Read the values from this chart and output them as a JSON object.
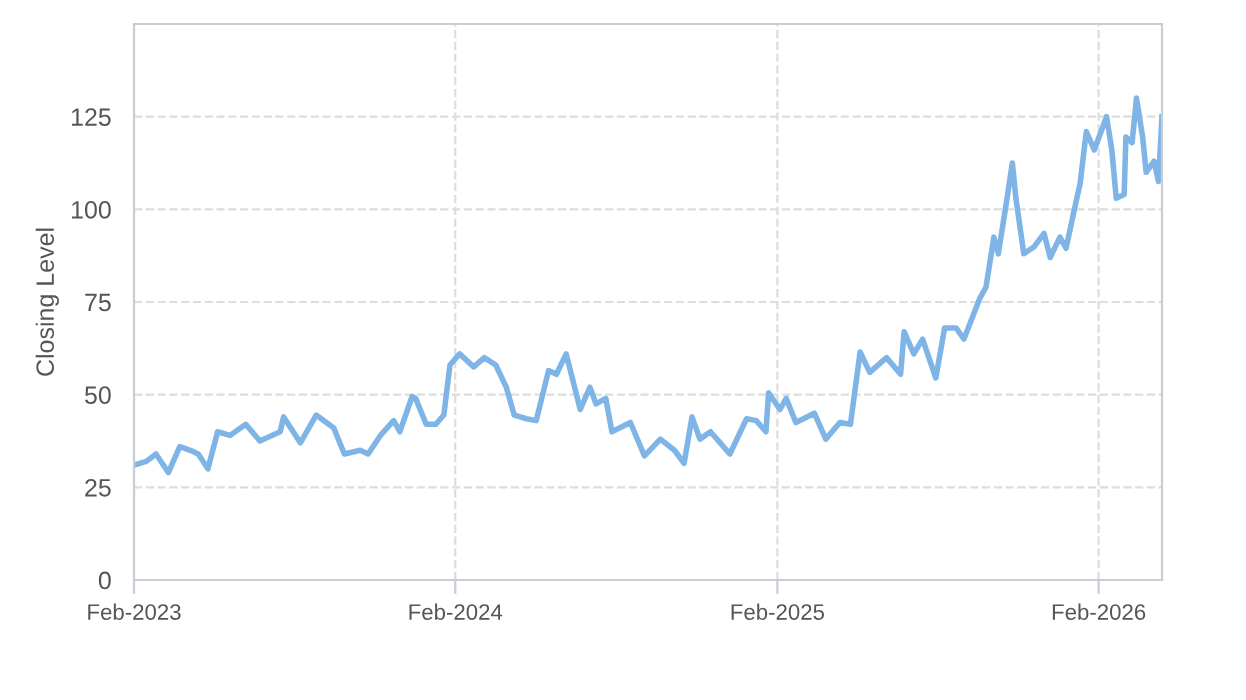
{
  "chart_data": {
    "type": "line",
    "ylabel": "Closing Level",
    "x": [
      "2023-02-01",
      "2023-02-15",
      "2023-02-26",
      "2023-03-12",
      "2023-03-25",
      "2023-04-06",
      "2023-04-15",
      "2023-04-26",
      "2023-05-07",
      "2023-05-21",
      "2023-06-08",
      "2023-06-24",
      "2023-07-17",
      "2023-07-21",
      "2023-08-09",
      "2023-08-27",
      "2023-09-16",
      "2023-09-28",
      "2023-10-16",
      "2023-10-25",
      "2023-11-08",
      "2023-11-23",
      "2023-11-30",
      "2023-12-14",
      "2023-12-18",
      "2023-12-30",
      "2024-01-10",
      "2024-01-19",
      "2024-01-26",
      "2024-02-06",
      "2024-02-22",
      "2024-03-05",
      "2024-03-18",
      "2024-03-30",
      "2024-04-08",
      "2024-04-22",
      "2024-05-03",
      "2024-05-17",
      "2024-05-26",
      "2024-06-06",
      "2024-06-22",
      "2024-07-03",
      "2024-07-10",
      "2024-07-21",
      "2024-07-28",
      "2024-08-18",
      "2024-09-03",
      "2024-09-21",
      "2024-10-07",
      "2024-10-18",
      "2024-10-27",
      "2024-11-05",
      "2024-11-17",
      "2024-11-28",
      "2024-12-09",
      "2024-12-28",
      "2025-01-08",
      "2025-01-19",
      "2025-01-22",
      "2025-02-04",
      "2025-02-11",
      "2025-02-22",
      "2025-03-15",
      "2025-03-28",
      "2025-04-13",
      "2025-04-25",
      "2025-05-06",
      "2025-05-17",
      "2025-06-05",
      "2025-06-21",
      "2025-06-25",
      "2025-07-06",
      "2025-07-16",
      "2025-07-31",
      "2025-08-10",
      "2025-08-23",
      "2025-09-01",
      "2025-09-19",
      "2025-09-26",
      "2025-10-05",
      "2025-10-10",
      "2025-10-19",
      "2025-10-26",
      "2025-10-30",
      "2025-11-08",
      "2025-11-20",
      "2025-12-01",
      "2025-12-08",
      "2025-12-19",
      "2025-12-26",
      "2026-01-04",
      "2026-01-11",
      "2026-01-18",
      "2026-01-27",
      "2026-02-10",
      "2026-02-16",
      "2026-02-21",
      "2026-03-02",
      "2026-03-04",
      "2026-03-11",
      "2026-03-16",
      "2026-03-23",
      "2026-03-27",
      "2026-04-05",
      "2026-04-10",
      "2026-04-14"
    ],
    "series": [
      {
        "color": "#7fb4e6",
        "values": [
          31,
          32,
          34,
          29,
          36,
          35,
          34,
          30,
          40,
          39,
          42,
          37.5,
          40,
          44,
          37,
          44.5,
          41,
          34,
          35,
          34,
          39,
          43,
          40,
          49.5,
          49,
          42,
          42,
          44.5,
          58,
          61,
          57.5,
          60,
          58,
          52,
          44.5,
          43.5,
          43,
          56.5,
          55.5,
          61,
          46,
          52,
          47.5,
          49,
          40,
          42.5,
          33.5,
          38,
          35,
          31.5,
          44,
          38,
          40,
          37,
          34,
          43.5,
          43,
          40,
          50.5,
          46,
          49,
          42.5,
          45,
          38,
          42.5,
          42,
          61.5,
          56,
          60,
          55.5,
          67,
          61,
          65,
          54.5,
          68,
          68,
          65,
          76,
          79,
          92.5,
          88,
          101.5,
          112.5,
          103,
          88,
          90,
          93.5,
          87,
          92.5,
          89.5,
          99.5,
          107,
          121,
          116,
          125,
          116,
          103,
          104,
          119.5,
          118,
          130,
          119.5,
          110,
          113,
          107.5,
          125
        ]
      }
    ],
    "xlim": [
      "2023-02-01",
      "2026-04-14"
    ],
    "xticks": [
      {
        "value": "2023-02-01",
        "label": "Feb-2023"
      },
      {
        "value": "2024-02-01",
        "label": "Feb-2024"
      },
      {
        "value": "2025-02-01",
        "label": "Feb-2025"
      },
      {
        "value": "2026-02-01",
        "label": "Feb-2026"
      }
    ],
    "ylim": [
      0,
      150
    ],
    "yticks": [
      0,
      25,
      50,
      75,
      100,
      125
    ],
    "grid": true,
    "marker": "none",
    "line_style": "solid"
  }
}
